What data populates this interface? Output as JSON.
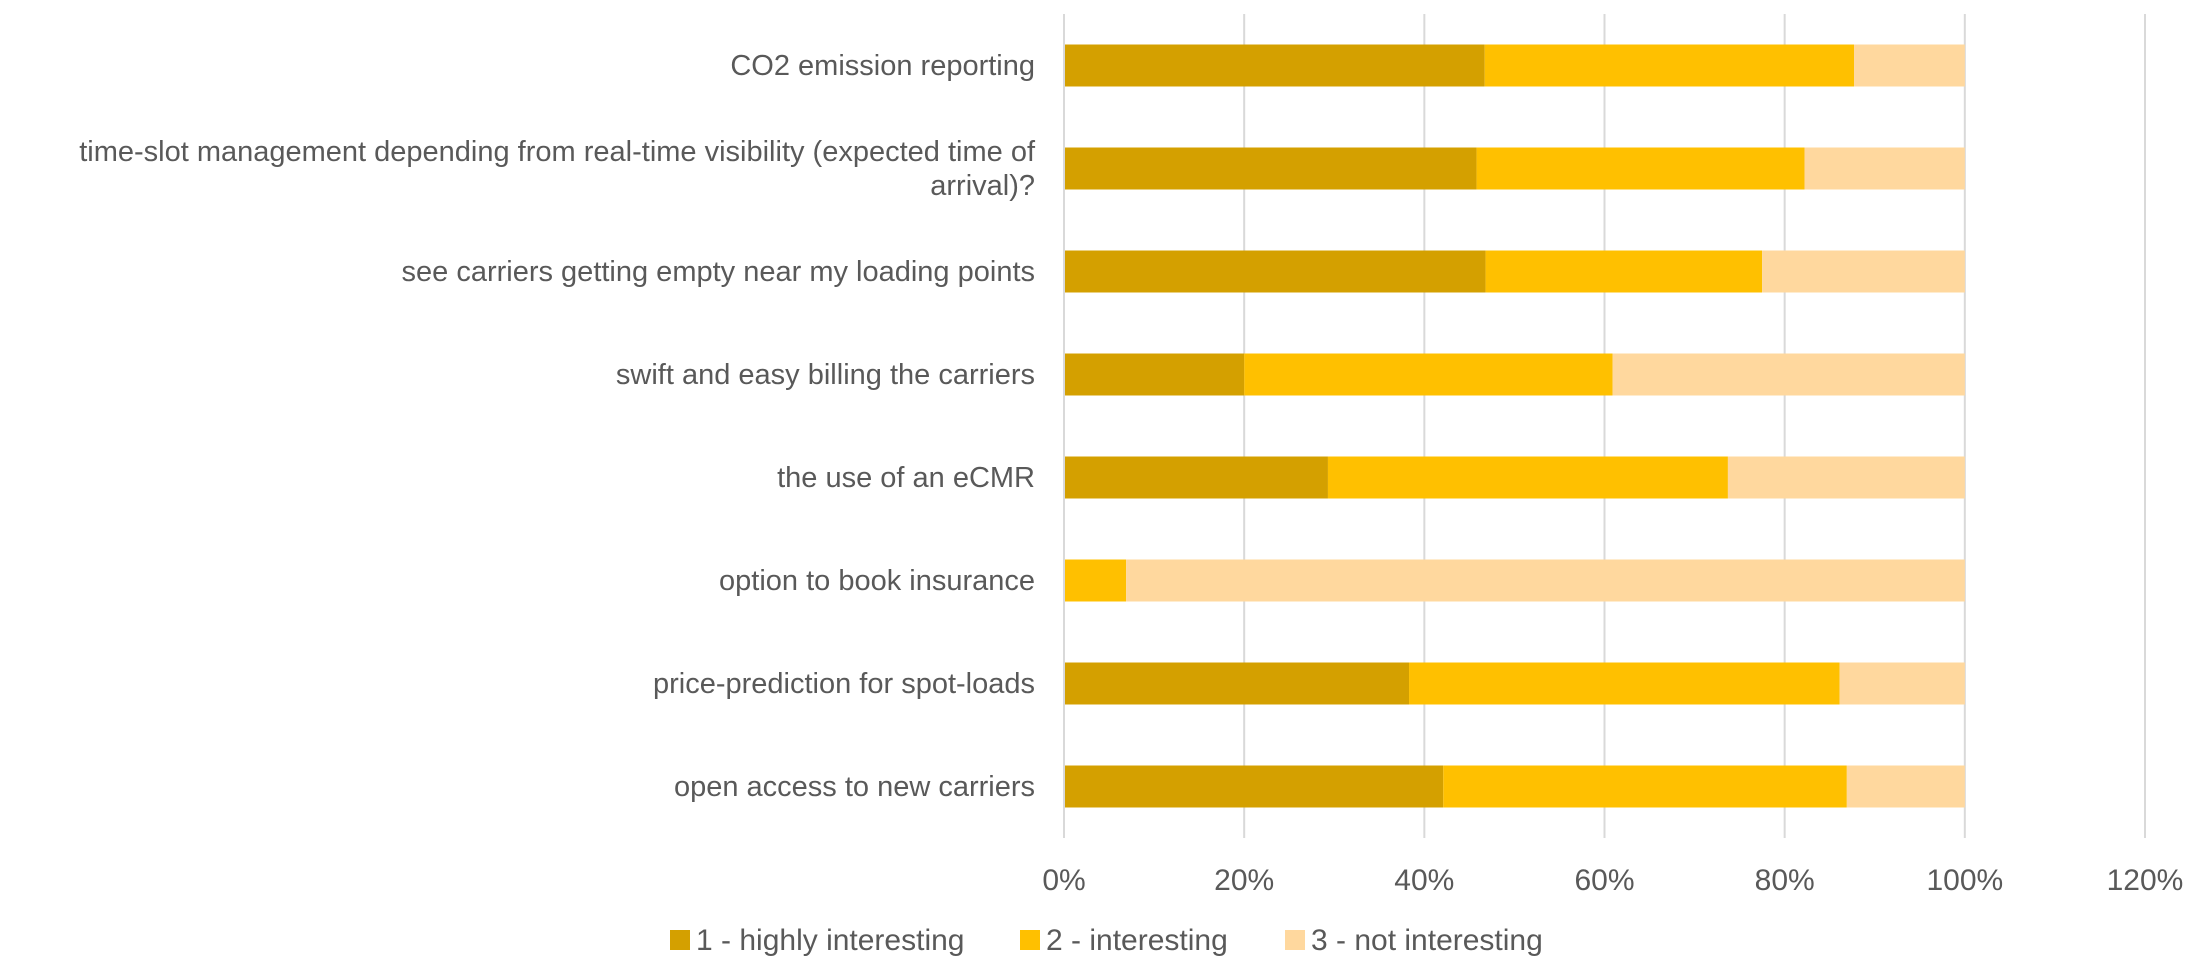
{
  "chart_data": {
    "type": "stacked-bar-horizontal",
    "categories": [
      "CO2 emission reporting",
      "time-slot management depending from real-time visibility (expected time of arrival)?",
      "see carriers getting empty near my loading points",
      "swift and easy billing the carriers",
      "the use of an eCMR",
      "option to book insurance",
      "price-prediction for spot-loads",
      "open access to new carriers"
    ],
    "series": [
      {
        "name": "1 - highly interesting",
        "color": "#d4a000",
        "values": [
          46.7,
          45.8,
          46.8,
          20.0,
          29.3,
          0,
          38.3,
          42.1
        ]
      },
      {
        "name": "2 - interesting",
        "color": "#ffc000",
        "values": [
          41.0,
          36.4,
          30.7,
          40.9,
          44.4,
          6.9,
          47.8,
          44.8
        ]
      },
      {
        "name": "3 - not interesting",
        "color": "#ffd89e",
        "values": [
          12.3,
          17.8,
          22.5,
          39.1,
          26.3,
          93.1,
          13.9,
          13.1
        ]
      }
    ],
    "xlim": [
      0,
      120
    ],
    "xticks": [
      {
        "value": 0,
        "label": "0%"
      },
      {
        "value": 20,
        "label": "20%"
      },
      {
        "value": 40,
        "label": "40%"
      },
      {
        "value": 60,
        "label": "60%"
      },
      {
        "value": 80,
        "label": "80%"
      },
      {
        "value": 100,
        "label": "100%"
      },
      {
        "value": 120,
        "label": "120%"
      }
    ],
    "grid": true,
    "legend": "bottom"
  }
}
